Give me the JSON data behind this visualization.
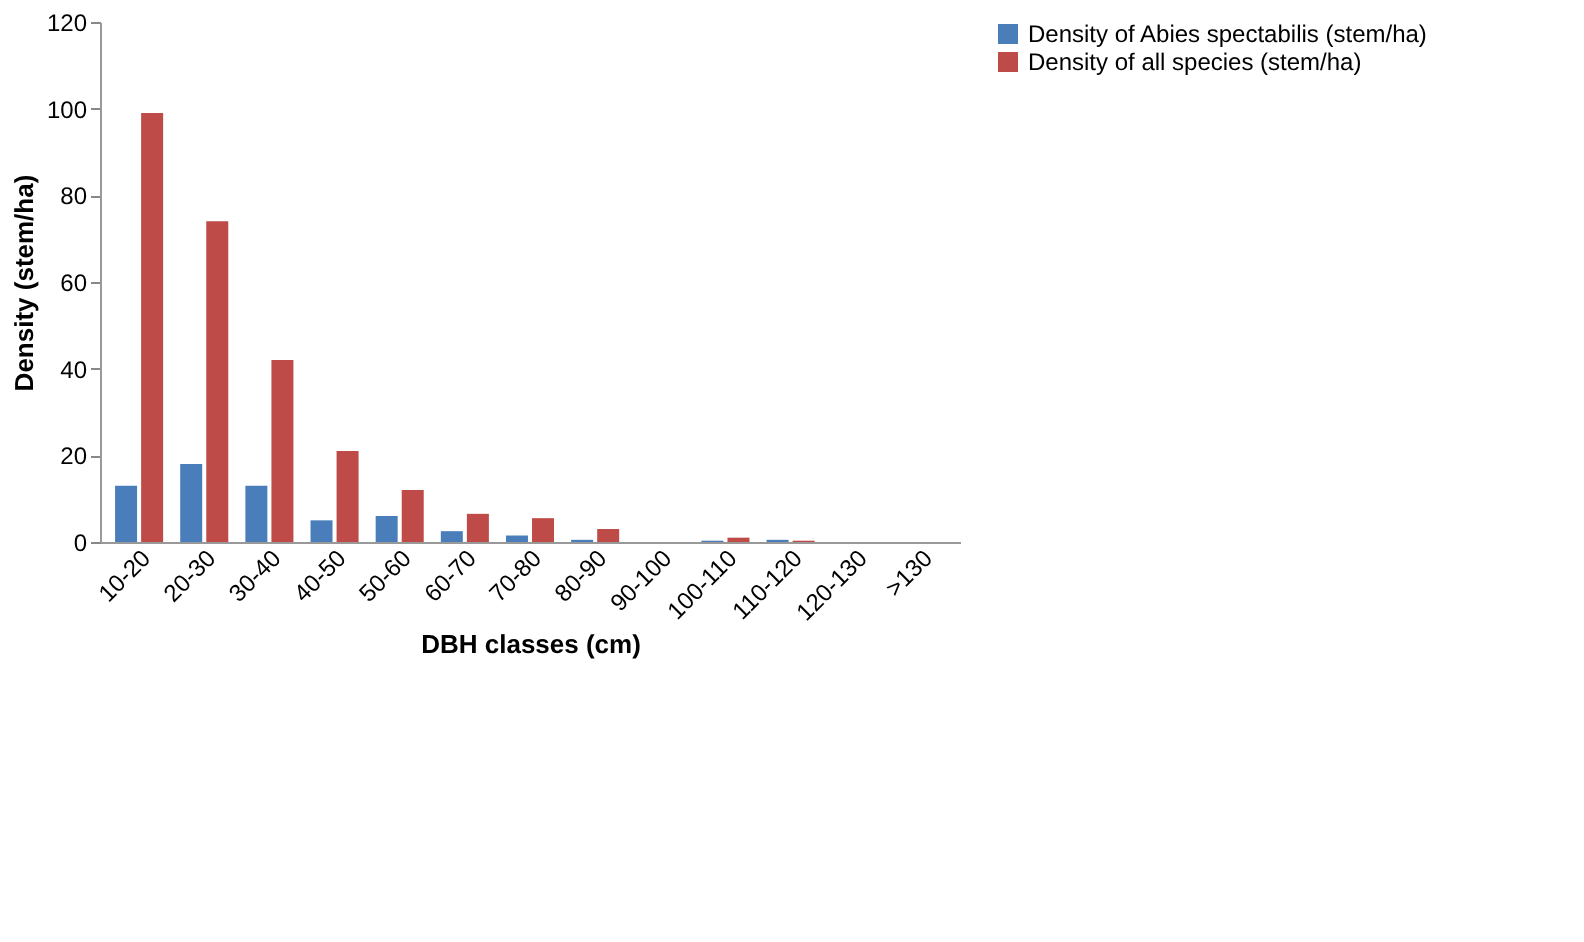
{
  "chart_data": {
    "type": "bar",
    "xlabel": "DBH classes (cm)",
    "ylabel": "Density (stem/ha)",
    "categories": [
      "10-20",
      "20-30",
      "30-40",
      "40-50",
      "50-60",
      "60-70",
      "70-80",
      "80-90",
      "90-100",
      "100-110",
      "110-120",
      "120-130",
      ">130"
    ],
    "series": [
      {
        "name": "Density of Abies spectabilis (stem/ha)",
        "color": "#4a7ebb",
        "values": [
          13,
          18,
          13,
          5,
          6,
          2.5,
          1.5,
          0.5,
          0,
          0.3,
          0.5,
          0,
          0
        ]
      },
      {
        "name": "Density of all species (stem/ha)",
        "color": "#be4b48",
        "values": [
          99,
          74,
          42,
          21,
          12,
          6.5,
          5.5,
          3,
          0,
          1,
          0.3,
          0,
          0
        ]
      }
    ],
    "ylim": [
      0,
      120
    ],
    "yticks": [
      0,
      20,
      40,
      60,
      80,
      100,
      120
    ],
    "grid": false,
    "legend": "top right"
  }
}
